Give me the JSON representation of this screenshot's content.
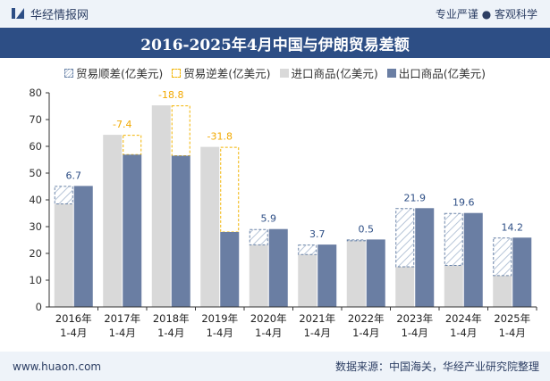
{
  "header": {
    "brand": "华经情报网",
    "tagline": "专业严谨 ● 客观科学"
  },
  "title": "2016-2025年4月中国与伊朗贸易差额",
  "legend": [
    "贸易顺差(亿美元)",
    "贸易逆差(亿美元)",
    "进口商品(亿美元)",
    "出口商品(亿美元)"
  ],
  "footer": {
    "site": "www.huaon.com",
    "source": "数据来源：中国海关，华经产业研究院整理"
  },
  "colors": {
    "import": "#d9d9d9",
    "export": "#6a7ea3",
    "surplus_border": "#6b84a8",
    "deficit_border": "#f2b400",
    "surplus_label": "#2d4e85",
    "deficit_label": "#f2a900"
  },
  "chart_data": {
    "type": "bar",
    "title": "2016-2025年4月中国与伊朗贸易差额",
    "categories": [
      [
        "2016年",
        "1-4月"
      ],
      [
        "2017年",
        "1-4月"
      ],
      [
        "2018年",
        "1-4月"
      ],
      [
        "2019年",
        "1-4月"
      ],
      [
        "2020年",
        "1-4月"
      ],
      [
        "2021年",
        "1-4月"
      ],
      [
        "2022年",
        "1-4月"
      ],
      [
        "2023年",
        "1-4月"
      ],
      [
        "2024年",
        "1-4月"
      ],
      [
        "2025年",
        "1-4月"
      ]
    ],
    "series": [
      {
        "name": "进口商品(亿美元)",
        "values": [
          38.5,
          64.3,
          75.3,
          59.8,
          23.2,
          19.6,
          24.7,
          15.0,
          15.5,
          11.7
        ]
      },
      {
        "name": "出口商品(亿美元)",
        "values": [
          45.2,
          56.9,
          56.5,
          28.0,
          29.1,
          23.3,
          25.2,
          36.9,
          35.1,
          25.9
        ]
      }
    ],
    "balance": [
      6.7,
      -7.4,
      -18.8,
      -31.8,
      5.9,
      3.7,
      0.5,
      21.9,
      19.6,
      14.2
    ],
    "balance_labels": [
      "6.7",
      "-7.4",
      "-18.8",
      "-31.8",
      "5.9",
      "3.7",
      "0.5",
      "21.9",
      "19.6",
      "14.2"
    ],
    "ylim": [
      0,
      80
    ],
    "yticks": [
      "0",
      "10",
      "20",
      "30",
      "40",
      "50",
      "60",
      "70",
      "80"
    ],
    "legend_position": "top-center",
    "grid": false
  }
}
